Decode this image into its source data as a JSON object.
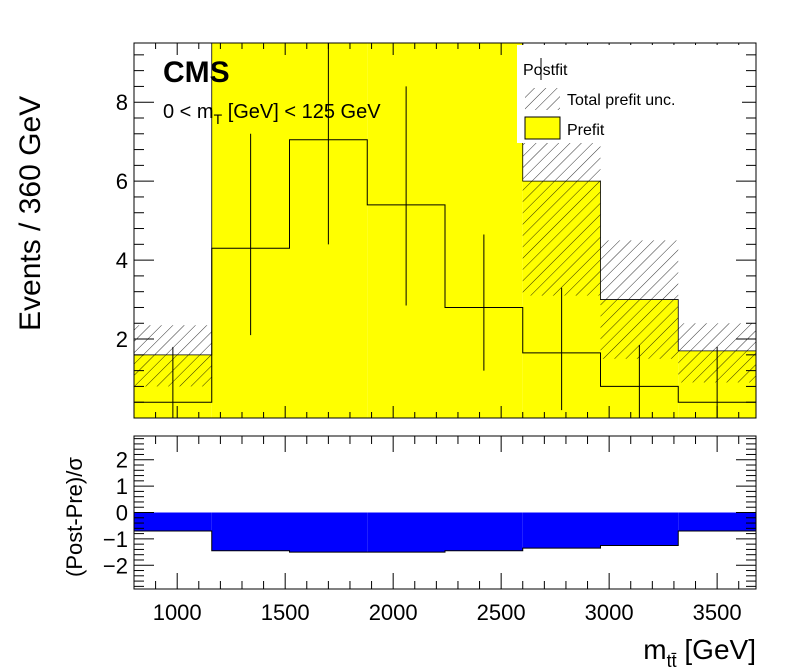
{
  "chart_data": [
    {
      "type": "histogram",
      "panel": "main",
      "x_edges": [
        800,
        1160,
        1520,
        1880,
        2240,
        2600,
        2960,
        3320,
        3680
      ],
      "xlim": [
        800,
        3680
      ],
      "ylim": [
        0,
        9.5
      ],
      "ylabel": "Events / 360 GeV",
      "yticks": [
        2,
        4,
        6,
        8
      ],
      "series": [
        {
          "name": "Prefit",
          "kind": "filled",
          "color": "#ffff00",
          "values": [
            1.6,
            9.5,
            9.5,
            9.5,
            9.5,
            6.0,
            3.0,
            1.7
          ]
        },
        {
          "name": "Total prefit unc.",
          "kind": "hatched-band",
          "lower": [
            0.8,
            9.5,
            9.5,
            9.5,
            9.5,
            3.1,
            1.5,
            0.9
          ],
          "upper": [
            2.35,
            9.5,
            9.5,
            9.5,
            9.5,
            7.0,
            4.5,
            2.4
          ]
        },
        {
          "name": "Postfit",
          "kind": "step-with-errors",
          "values": [
            0.4,
            4.3,
            7.05,
            5.4,
            2.8,
            1.65,
            0.8,
            0.4
          ],
          "err_low": [
            0.4,
            2.2,
            2.65,
            2.55,
            1.6,
            1.45,
            0.8,
            0.4
          ],
          "err_high": [
            1.4,
            2.9,
            2.7,
            3.0,
            1.85,
            1.65,
            1.05,
            1.4
          ]
        }
      ]
    },
    {
      "type": "histogram",
      "panel": "ratio",
      "x_edges": [
        800,
        1160,
        1520,
        1880,
        2240,
        2600,
        2960,
        3320,
        3680
      ],
      "xlim": [
        800,
        3680
      ],
      "ylim": [
        -2.9,
        2.9
      ],
      "ylabel": "(Post-Pre)/σ",
      "xlabel_main": "m",
      "xlabel_sub": "tt̄",
      "xlabel_unit": " [GeV]",
      "yticks": [
        -2,
        -1,
        0,
        1,
        2
      ],
      "xticks": [
        1000,
        1500,
        2000,
        2500,
        3000,
        3500
      ],
      "color": "#0000ff",
      "values": [
        -0.7,
        -1.45,
        -1.5,
        -1.5,
        -1.45,
        -1.35,
        -1.25,
        -0.7
      ]
    }
  ],
  "labels": {
    "experiment": "CMS",
    "region_prefix": "0 < m",
    "region_sub": "T",
    "region_suffix": " [GeV] < 125 GeV"
  },
  "legend": {
    "placement": "top-right",
    "entries": [
      "Postfit",
      "Total prefit unc.",
      "Prefit"
    ]
  }
}
